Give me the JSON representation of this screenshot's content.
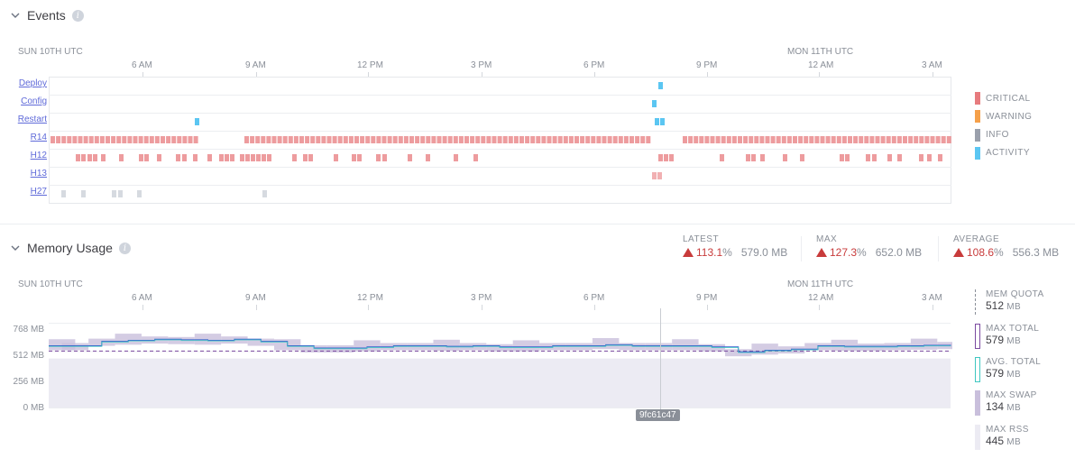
{
  "events": {
    "title": "Events",
    "date_left": "SUN 10TH UTC",
    "date_right": "MON 11TH UTC",
    "time_ticks": [
      "6 AM",
      "9 AM",
      "12 PM",
      "3 PM",
      "6 PM",
      "9 PM",
      "12 AM",
      "3 AM"
    ],
    "rows": [
      "Deploy",
      "Config",
      "Restart",
      "R14",
      "H12",
      "H13",
      "H27"
    ],
    "legend": [
      {
        "label": "CRITICAL",
        "color": "#e77b7e"
      },
      {
        "label": "WARNING",
        "color": "#f5a04a"
      },
      {
        "label": "INFO",
        "color": "#9aa0ac"
      },
      {
        "label": "ACTIVITY",
        "color": "#5bc6f2"
      }
    ]
  },
  "memory": {
    "title": "Memory Usage",
    "stats": [
      {
        "key": "LATEST",
        "pct": "113.1",
        "pct_unit": "%",
        "mb": "579.0 MB"
      },
      {
        "key": "MAX",
        "pct": "127.3",
        "pct_unit": "%",
        "mb": "652.0 MB"
      },
      {
        "key": "AVERAGE",
        "pct": "108.6",
        "pct_unit": "%",
        "mb": "556.3 MB"
      }
    ],
    "date_left": "SUN 10TH UTC",
    "date_right": "MON 11TH UTC",
    "time_ticks": [
      "6 AM",
      "9 AM",
      "12 PM",
      "3 PM",
      "6 PM",
      "9 PM",
      "12 AM",
      "3 AM"
    ],
    "y_ticks": [
      "768 MB",
      "512 MB",
      "256 MB",
      "0 MB"
    ],
    "release_tag": "9fc61c47",
    "legend": [
      {
        "label": "MEM QUOTA",
        "value": "512",
        "unit": "MB",
        "color": "#8a8f98"
      },
      {
        "label": "MAX TOTAL",
        "value": "579",
        "unit": "MB",
        "color": "#7b4aa0"
      },
      {
        "label": "AVG. TOTAL",
        "value": "579",
        "unit": "MB",
        "color": "#3fc7c1"
      },
      {
        "label": "MAX SWAP",
        "value": "134",
        "unit": "MB",
        "color": "#c9bfdc"
      },
      {
        "label": "MAX RSS",
        "value": "445",
        "unit": "MB",
        "color": "#ecebf3"
      }
    ]
  },
  "chart_data": {
    "type": "area",
    "ylabel": "",
    "ylim": [
      0,
      900
    ],
    "y_ticks": [
      0,
      256,
      512,
      768
    ],
    "quota": 512,
    "series": [
      {
        "values": [
          560,
          560,
          600,
          610,
          620,
          615,
          610,
          620,
          600,
          560,
          540,
          540,
          550,
          560,
          560,
          555,
          560,
          550,
          550,
          560,
          560,
          570,
          560,
          560,
          560,
          550,
          505,
          520,
          530,
          560,
          555,
          555,
          560,
          565,
          570
        ]
      },
      {
        "values": [
          445,
          445,
          445,
          445,
          445,
          445,
          445,
          445,
          445,
          445,
          445,
          445,
          445,
          445,
          445,
          445,
          445,
          445,
          445,
          445,
          445,
          445,
          445,
          445,
          445,
          445,
          445,
          445,
          445,
          445,
          445,
          445,
          445,
          445,
          445
        ]
      },
      {
        "values": [
          134,
          134,
          134,
          134,
          134,
          134,
          134,
          134,
          134,
          134,
          134,
          134,
          134,
          134,
          134,
          134,
          134,
          134,
          134,
          134,
          134,
          134,
          134,
          134,
          134,
          134,
          134,
          134,
          134,
          134,
          134,
          134,
          134,
          134,
          134
        ]
      }
    ]
  }
}
